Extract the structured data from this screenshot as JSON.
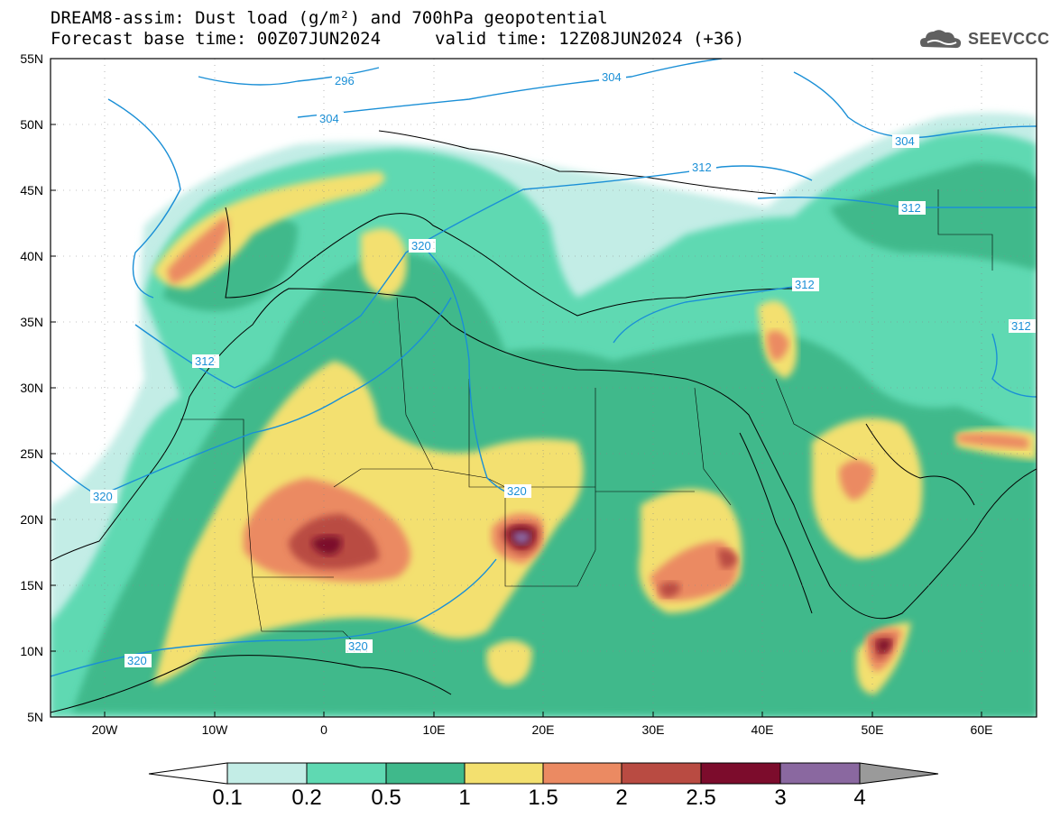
{
  "header": {
    "line1": "DREAM8-assim: Dust load (g/m²) and 700hPa geopotential",
    "base_time": "Forecast base time: 00Z07JUN2024",
    "valid_time": "valid time: 12Z08JUN2024 (+36)"
  },
  "logo": {
    "text": "SEEVCCC",
    "icon": "cloud-icon"
  },
  "axes": {
    "lat_ticks": [
      "55N",
      "50N",
      "45N",
      "40N",
      "35N",
      "30N",
      "25N",
      "20N",
      "15N",
      "10N",
      "5N"
    ],
    "lon_ticks": [
      "20W",
      "10W",
      "0",
      "10E",
      "20E",
      "30E",
      "40E",
      "50E",
      "60E"
    ]
  },
  "contours": {
    "labels": [
      {
        "text": "296"
      },
      {
        "text": "304"
      },
      {
        "text": "304"
      },
      {
        "text": "304"
      },
      {
        "text": "312"
      },
      {
        "text": "312"
      },
      {
        "text": "312"
      },
      {
        "text": "312"
      },
      {
        "text": "312"
      },
      {
        "text": "320"
      },
      {
        "text": "320"
      },
      {
        "text": "320"
      },
      {
        "text": "320"
      },
      {
        "text": "320"
      }
    ],
    "color": "#1a8fd6"
  },
  "colorbar": {
    "labels": [
      "0.1",
      "0.2",
      "0.5",
      "1",
      "1.5",
      "2",
      "2.5",
      "3",
      "4"
    ],
    "colors": [
      "#c3ede6",
      "#5fd9b2",
      "#3fb98b",
      "#f3e06f",
      "#eb8a62",
      "#b94b42",
      "#7c0c2c",
      "#8a68a0",
      "#9a9a9a"
    ]
  }
}
